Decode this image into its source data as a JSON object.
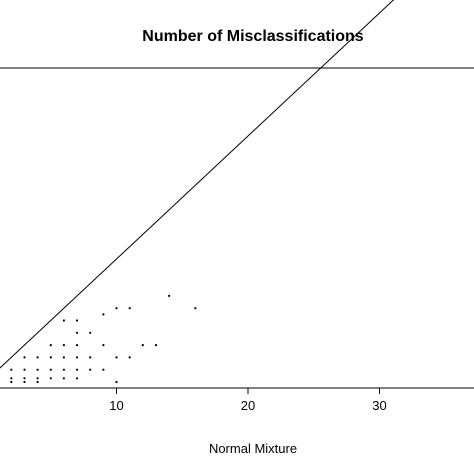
{
  "chart_data": {
    "type": "scatter",
    "title": "Number of Misclassifications",
    "xlabel": "Normal Mixture",
    "ylabel": "",
    "xlim": [
      0,
      38
    ],
    "ylim": [
      0,
      24
    ],
    "x_ticks": [
      10,
      20,
      30
    ],
    "x_tick_labels": [
      "10",
      "20",
      "30"
    ],
    "grid": false,
    "legend": "none",
    "reference_line": {
      "type": "y=x"
    },
    "point_color": "#000000",
    "line_color": "#000000",
    "points": [
      {
        "x": 1,
        "y": 2
      },
      {
        "x": 1,
        "y": 1
      },
      {
        "x": 1,
        "y": 0.3
      },
      {
        "x": 1,
        "y": 0
      },
      {
        "x": 2,
        "y": 1
      },
      {
        "x": 2,
        "y": 0.3
      },
      {
        "x": 2,
        "y": 0
      },
      {
        "x": 3,
        "y": 2
      },
      {
        "x": 3,
        "y": 1
      },
      {
        "x": 3,
        "y": 0.3
      },
      {
        "x": 3,
        "y": 0
      },
      {
        "x": 4,
        "y": 2
      },
      {
        "x": 4,
        "y": 1
      },
      {
        "x": 4,
        "y": 0.3
      },
      {
        "x": 4,
        "y": 0
      },
      {
        "x": 5,
        "y": 3
      },
      {
        "x": 5,
        "y": 2
      },
      {
        "x": 5,
        "y": 1
      },
      {
        "x": 5,
        "y": 0.3
      },
      {
        "x": 6,
        "y": 5
      },
      {
        "x": 6,
        "y": 3
      },
      {
        "x": 6,
        "y": 2
      },
      {
        "x": 6,
        "y": 1
      },
      {
        "x": 6,
        "y": 0.3
      },
      {
        "x": 7,
        "y": 5
      },
      {
        "x": 7,
        "y": 4
      },
      {
        "x": 7,
        "y": 3
      },
      {
        "x": 7,
        "y": 2
      },
      {
        "x": 7,
        "y": 1
      },
      {
        "x": 7,
        "y": 0.3
      },
      {
        "x": 8,
        "y": 4
      },
      {
        "x": 8,
        "y": 2
      },
      {
        "x": 8,
        "y": 1
      },
      {
        "x": 9,
        "y": 5.5
      },
      {
        "x": 9,
        "y": 3
      },
      {
        "x": 9,
        "y": 1
      },
      {
        "x": 10,
        "y": 6
      },
      {
        "x": 10,
        "y": 2
      },
      {
        "x": 10,
        "y": 0
      },
      {
        "x": 11,
        "y": 6
      },
      {
        "x": 11,
        "y": 2
      },
      {
        "x": 12,
        "y": 3
      },
      {
        "x": 13,
        "y": 3
      },
      {
        "x": 14,
        "y": 7
      },
      {
        "x": 16,
        "y": 6
      }
    ]
  }
}
